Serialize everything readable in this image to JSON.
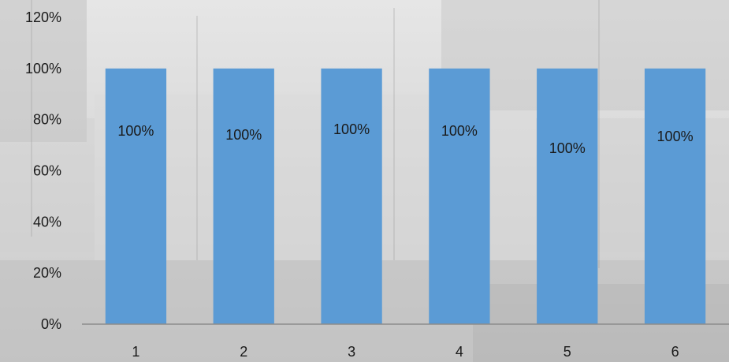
{
  "chart_data": {
    "type": "bar",
    "categories": [
      "1",
      "2",
      "3",
      "4",
      "5",
      "6"
    ],
    "values": [
      100,
      100,
      100,
      100,
      100,
      100
    ],
    "data_labels": [
      "100%",
      "100%",
      "100%",
      "100%",
      "100%",
      "100%"
    ],
    "title": "",
    "xlabel": "",
    "ylabel": "",
    "ylim": [
      0,
      120
    ],
    "yticks": [
      0,
      20,
      40,
      60,
      80,
      100,
      120
    ],
    "ytick_labels": [
      "0%",
      "20%",
      "40%",
      "60%",
      "80%",
      "100%",
      "120%"
    ],
    "grid": false,
    "legend": "none",
    "colors": {
      "bar": "#5b9bd5",
      "axis": "#8c8c8c",
      "text": "#1a1a1a"
    }
  }
}
